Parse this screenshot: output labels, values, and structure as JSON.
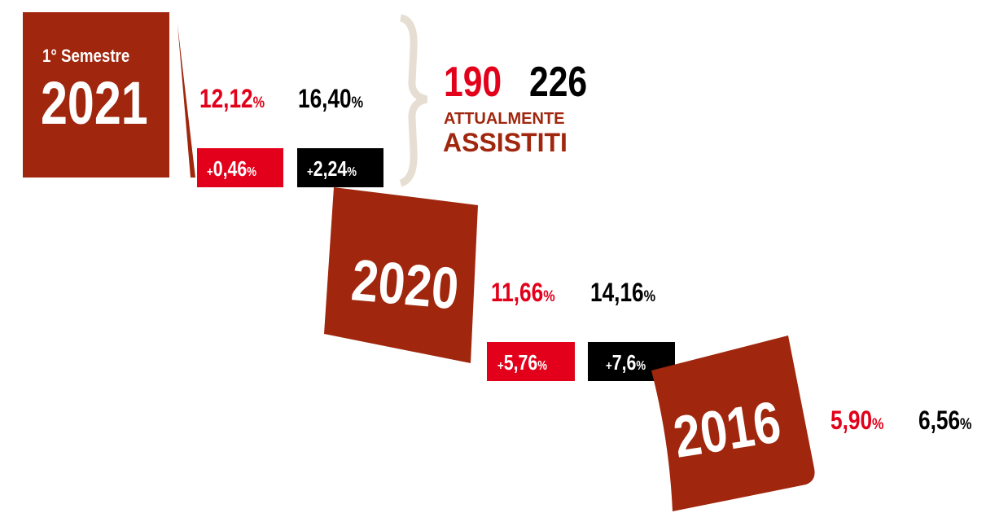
{
  "blocks": [
    {
      "label": "1° Semestre",
      "year": "2021",
      "stats": [
        {
          "value": "12,12",
          "unit": "%"
        },
        {
          "value": "16,40",
          "unit": "%"
        }
      ],
      "changes": [
        {
          "sign": "+",
          "value": "0,46",
          "unit": "%"
        },
        {
          "sign": "+",
          "value": "2,24",
          "unit": "%"
        }
      ]
    },
    {
      "year": "2020",
      "stats": [
        {
          "value": "11,66",
          "unit": "%"
        },
        {
          "value": "14,16",
          "unit": "%"
        }
      ],
      "changes": [
        {
          "sign": "+",
          "value": "5,76",
          "unit": "%"
        },
        {
          "sign": "+",
          "value": "7,6",
          "unit": "%"
        }
      ]
    },
    {
      "year": "2016",
      "stats": [
        {
          "value": "5,90",
          "unit": "%"
        },
        {
          "value": "6,56",
          "unit": "%"
        }
      ]
    }
  ],
  "assisted": {
    "values": [
      "190",
      "226"
    ],
    "line1": "ATTUALMENTE",
    "line2": "ASSISTITI"
  }
}
